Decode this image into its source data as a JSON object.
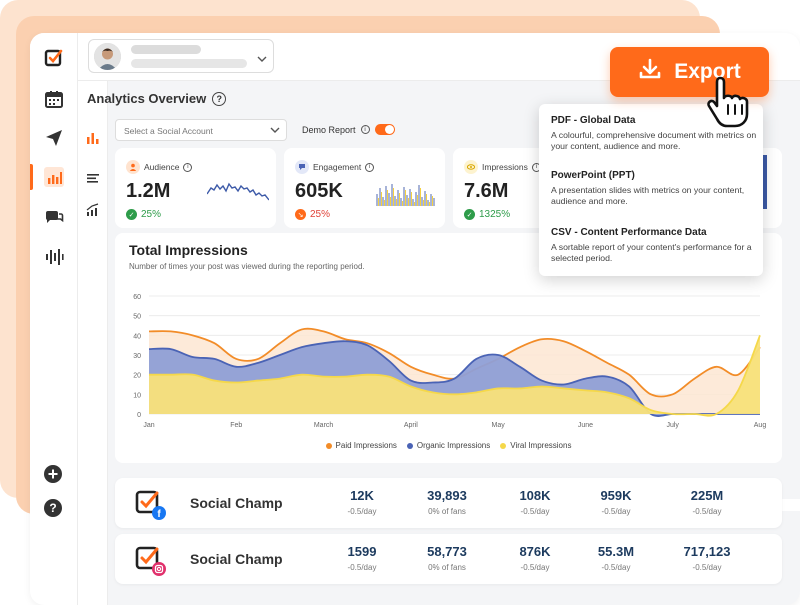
{
  "header": {
    "page_title": "Analytics Overview"
  },
  "filters": {
    "social_account_placeholder": "Select a Social Account",
    "demo_report_label": "Demo Report"
  },
  "cards": [
    {
      "label": "Audience",
      "value": "1.2M",
      "change": "25%",
      "trend": "up"
    },
    {
      "label": "Engagement",
      "value": "605K",
      "change": "25%",
      "trend": "down"
    },
    {
      "label": "Impressions",
      "value": "7.6M",
      "change": "1325%",
      "trend": "up"
    }
  ],
  "export": {
    "button_label": "Export",
    "options": [
      {
        "title": "PDF - Global Data",
        "desc": "A colourful, comprehensive document with metrics on your content, audience and more."
      },
      {
        "title": "PowerPoint (PPT)",
        "desc": "A presentation slides with metrics on your content, audience and more."
      },
      {
        "title": "CSV - Content Performance Data",
        "desc": "A sortable report of your content's performance for a selected period."
      }
    ]
  },
  "chart_data": {
    "type": "area",
    "title": "Total Impressions",
    "subtitle": "Number of times your post was viewed during the reporting period.",
    "categories": [
      "Jan",
      "Feb",
      "March",
      "April",
      "May",
      "June",
      "July",
      "Aug"
    ],
    "x": [
      0,
      0.25,
      0.5,
      0.75,
      1,
      1.25,
      1.5,
      1.75,
      2,
      2.25,
      2.5,
      2.75,
      3,
      3.25,
      3.5,
      3.75,
      4,
      4.25,
      4.5,
      4.75,
      5,
      5.25,
      5.5,
      5.75,
      6,
      6.25,
      6.5,
      6.75,
      7
    ],
    "ylim": [
      0,
      60
    ],
    "yticks": [
      0,
      10,
      20,
      30,
      40,
      50,
      60
    ],
    "series": [
      {
        "name": "Paid Impressions",
        "color": "#f28c28",
        "values": [
          42,
          42,
          40,
          36,
          28,
          28,
          36,
          43,
          42,
          38,
          36,
          31,
          24,
          20,
          18,
          23,
          28,
          34,
          38,
          37,
          32,
          26,
          20,
          10,
          10,
          18,
          24,
          20,
          34
        ]
      },
      {
        "name": "Organic Impressions",
        "color": "#4a63b5",
        "values": [
          33,
          33,
          29,
          28,
          24,
          26,
          30,
          34,
          36,
          37,
          35,
          27,
          17,
          16,
          18,
          28,
          30,
          24,
          17,
          15,
          18,
          19,
          14,
          0,
          0,
          0,
          0,
          0,
          0
        ]
      },
      {
        "name": "Viral Impressions",
        "color": "#f5d84a",
        "values": [
          20,
          20,
          20,
          17,
          16,
          17,
          18,
          20,
          19,
          19,
          20,
          19,
          14,
          11,
          10,
          11,
          13,
          13,
          14,
          13,
          12,
          11,
          8,
          2,
          0,
          0,
          0,
          12,
          40
        ]
      }
    ]
  },
  "social_rows": [
    {
      "name": "Social Champ",
      "network": "facebook",
      "stats": [
        {
          "value": "12K",
          "sub": "-0.5/day"
        },
        {
          "value": "39,893",
          "sub": "0% of fans"
        },
        {
          "value": "108K",
          "sub": "-0.5/day"
        },
        {
          "value": "959K",
          "sub": "-0.5/day"
        },
        {
          "value": "225M",
          "sub": "-0.5/day"
        }
      ]
    },
    {
      "name": "Social Champ",
      "network": "instagram",
      "stats": [
        {
          "value": "1599",
          "sub": "-0.5/day"
        },
        {
          "value": "58,773",
          "sub": "0% of fans"
        },
        {
          "value": "876K",
          "sub": "-0.5/day"
        },
        {
          "value": "55.3M",
          "sub": "-0.5/day"
        },
        {
          "value": "717,123",
          "sub": "-0.5/day"
        }
      ]
    }
  ],
  "colors": {
    "accent": "#ff6a1a",
    "navy": "#1c3a5e"
  }
}
